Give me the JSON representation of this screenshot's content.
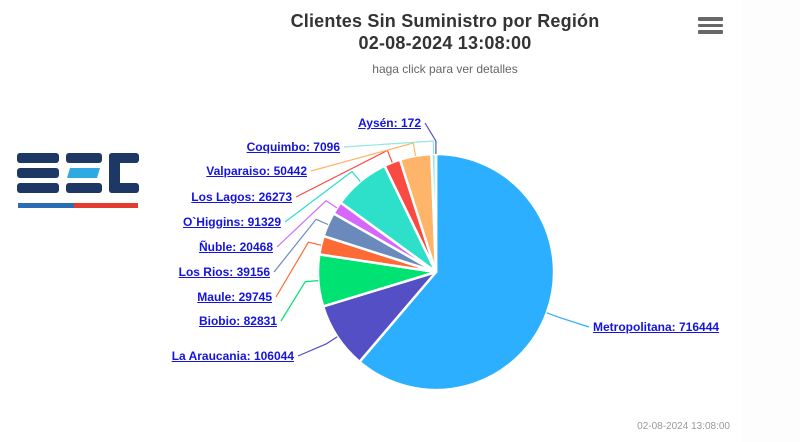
{
  "header": {
    "title_line1": "Clientes Sin Suministro por Región",
    "title_line2": "02-08-2024 13:08:00",
    "subtitle": "haga click para ver detalles"
  },
  "toolbar": {
    "menu_icon": "hamburger-menu-icon"
  },
  "logo": {
    "text": "SEC",
    "colors": {
      "navy": "#1d3865",
      "cyan": "#2fa9e1",
      "underline_blue": "#2a6db5",
      "underline_red": "#e23b2f"
    }
  },
  "credits": {
    "text": "02-08-2024 13:08:00"
  },
  "colors": {
    "label_link": "#1414dd",
    "title": "#333333",
    "subtitle": "#666666",
    "credits": "#999999"
  },
  "chart_data": {
    "type": "pie",
    "title": "Clientes Sin Suministro por Región 02-08-2024 13:08:00",
    "subtitle": "haga click para ver detalles",
    "start_angle_deg": 0,
    "direction": "clockwise",
    "legend": "none",
    "label_format": "name: value",
    "slices": [
      {
        "label": "Metropolitana",
        "value": 716444,
        "color": "#2CAFFE"
      },
      {
        "label": "La Araucania",
        "value": 106044,
        "color": "#544FC5"
      },
      {
        "label": "Biobio",
        "value": 82831,
        "color": "#00E272"
      },
      {
        "label": "Maule",
        "value": 29745,
        "color": "#FE6A35"
      },
      {
        "label": "Los Rios",
        "value": 39156,
        "color": "#6B8ABC"
      },
      {
        "label": "Ñuble",
        "value": 20468,
        "color": "#D568FB"
      },
      {
        "label": "O`Higgins",
        "value": 91329,
        "color": "#2EE0CA"
      },
      {
        "label": "Los Lagos",
        "value": 26273,
        "color": "#FA4B42"
      },
      {
        "label": "Valparaiso",
        "value": 50442,
        "color": "#FEB56A"
      },
      {
        "label": "Coquimbo",
        "value": 7096,
        "color": "#91E8E1"
      },
      {
        "label": "Aysén",
        "value": 172,
        "color": "#544FC5"
      }
    ]
  }
}
